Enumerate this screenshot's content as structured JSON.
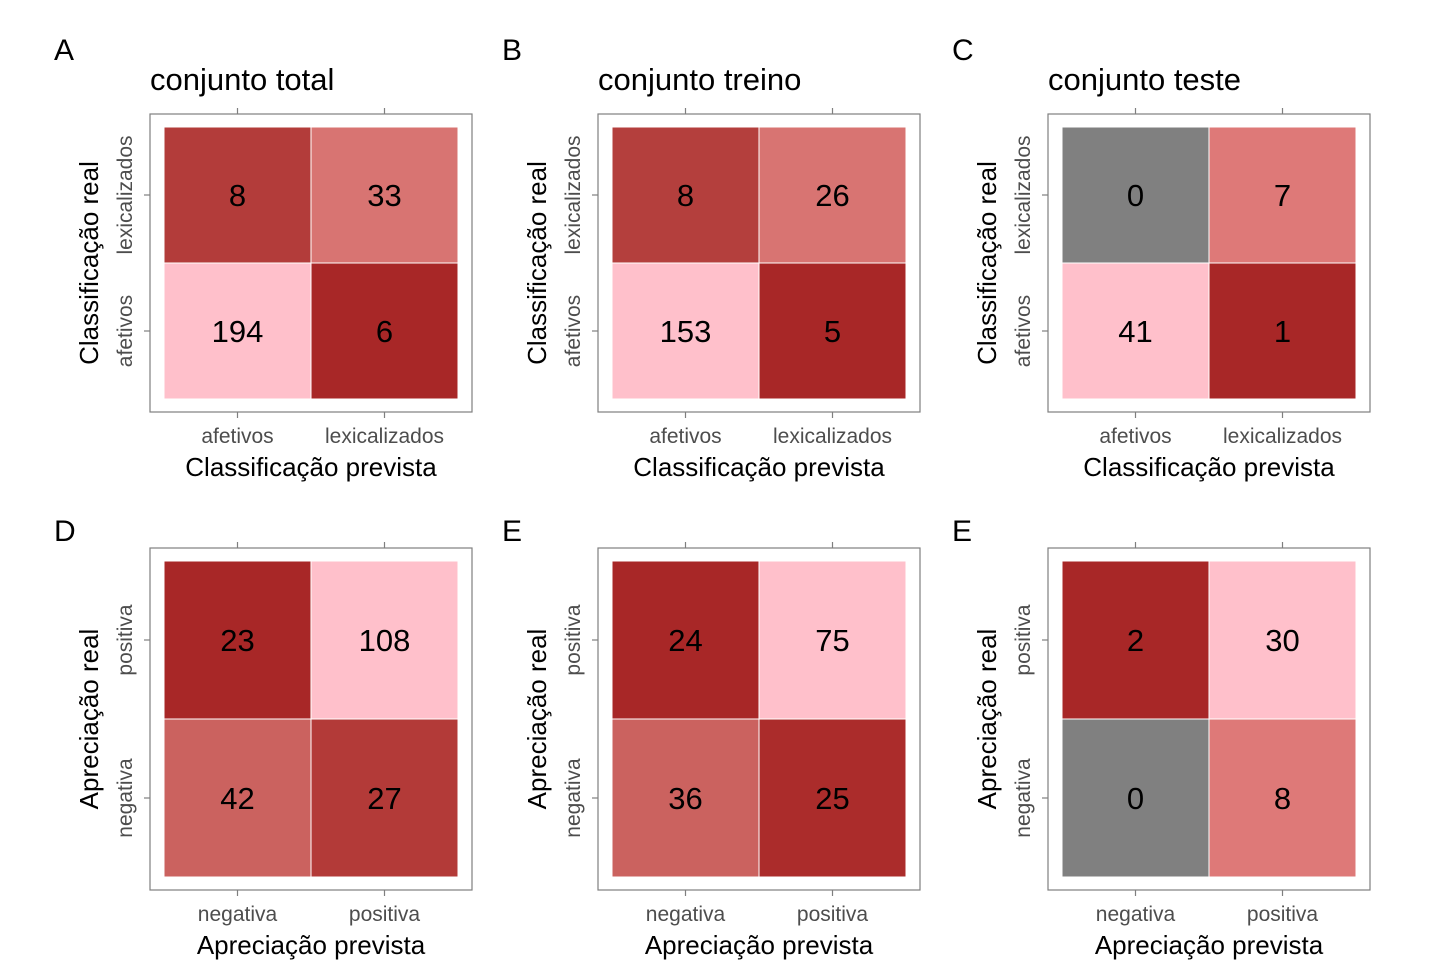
{
  "chart_data": [
    {
      "type": "heatmap",
      "tag": "A",
      "title": "conjunto total",
      "xlabel": "Classificação prevista",
      "ylabel": "Classificação real",
      "x_categories": [
        "afetivos",
        "lexicalizados"
      ],
      "y_categories": [
        "afetivos",
        "lexicalizados"
      ],
      "cells": [
        {
          "x": "afetivos",
          "y": "lexicalizados",
          "value": 8,
          "color": "#b33c3a"
        },
        {
          "x": "lexicalizados",
          "y": "lexicalizados",
          "value": 33,
          "color": "#d87472"
        },
        {
          "x": "afetivos",
          "y": "afetivos",
          "value": 194,
          "color": "#ffc0cb"
        },
        {
          "x": "lexicalizados",
          "y": "afetivos",
          "value": 6,
          "color": "#a82727"
        }
      ]
    },
    {
      "type": "heatmap",
      "tag": "B",
      "title": "conjunto treino",
      "xlabel": "Classificação prevista",
      "ylabel": "Classificação real",
      "x_categories": [
        "afetivos",
        "lexicalizados"
      ],
      "y_categories": [
        "afetivos",
        "lexicalizados"
      ],
      "cells": [
        {
          "x": "afetivos",
          "y": "lexicalizados",
          "value": 8,
          "color": "#b43f3d"
        },
        {
          "x": "lexicalizados",
          "y": "lexicalizados",
          "value": 26,
          "color": "#d87472"
        },
        {
          "x": "afetivos",
          "y": "afetivos",
          "value": 153,
          "color": "#ffc0cb"
        },
        {
          "x": "lexicalizados",
          "y": "afetivos",
          "value": 5,
          "color": "#a82727"
        }
      ]
    },
    {
      "type": "heatmap",
      "tag": "C",
      "title": "conjunto teste",
      "xlabel": "Classificação prevista",
      "ylabel": "Classificação real",
      "x_categories": [
        "afetivos",
        "lexicalizados"
      ],
      "y_categories": [
        "afetivos",
        "lexicalizados"
      ],
      "cells": [
        {
          "x": "afetivos",
          "y": "lexicalizados",
          "value": 0,
          "color": "#808080"
        },
        {
          "x": "lexicalizados",
          "y": "lexicalizados",
          "value": 7,
          "color": "#de7978"
        },
        {
          "x": "afetivos",
          "y": "afetivos",
          "value": 41,
          "color": "#ffc0cb"
        },
        {
          "x": "lexicalizados",
          "y": "afetivos",
          "value": 1,
          "color": "#a82727"
        }
      ]
    },
    {
      "type": "heatmap",
      "tag": "D",
      "title": "",
      "xlabel": "Apreciação prevista",
      "ylabel": "Apreciação real",
      "x_categories": [
        "negativa",
        "positiva"
      ],
      "y_categories": [
        "negativa",
        "positiva"
      ],
      "cells": [
        {
          "x": "negativa",
          "y": "positiva",
          "value": 23,
          "color": "#a82727"
        },
        {
          "x": "positiva",
          "y": "positiva",
          "value": 108,
          "color": "#ffc0cb"
        },
        {
          "x": "negativa",
          "y": "negativa",
          "value": 42,
          "color": "#cb625f"
        },
        {
          "x": "positiva",
          "y": "negativa",
          "value": 27,
          "color": "#b33a38"
        }
      ]
    },
    {
      "type": "heatmap",
      "tag": "E",
      "title": "",
      "xlabel": "Apreciação prevista",
      "ylabel": "Apreciação real",
      "x_categories": [
        "negativa",
        "positiva"
      ],
      "y_categories": [
        "negativa",
        "positiva"
      ],
      "cells": [
        {
          "x": "negativa",
          "y": "positiva",
          "value": 24,
          "color": "#a82727"
        },
        {
          "x": "positiva",
          "y": "positiva",
          "value": 75,
          "color": "#ffc0cb"
        },
        {
          "x": "negativa",
          "y": "negativa",
          "value": 36,
          "color": "#cb625f"
        },
        {
          "x": "positiva",
          "y": "negativa",
          "value": 25,
          "color": "#ab2c2b"
        }
      ]
    },
    {
      "type": "heatmap",
      "tag": "E",
      "title": "",
      "xlabel": "Apreciação prevista",
      "ylabel": "Apreciação real",
      "x_categories": [
        "negativa",
        "positiva"
      ],
      "y_categories": [
        "negativa",
        "positiva"
      ],
      "cells": [
        {
          "x": "negativa",
          "y": "positiva",
          "value": 2,
          "color": "#a82727"
        },
        {
          "x": "positiva",
          "y": "positiva",
          "value": 30,
          "color": "#ffc0cb"
        },
        {
          "x": "negativa",
          "y": "negativa",
          "value": 0,
          "color": "#808080"
        },
        {
          "x": "positiva",
          "y": "negativa",
          "value": 8,
          "color": "#de7978"
        }
      ]
    }
  ]
}
